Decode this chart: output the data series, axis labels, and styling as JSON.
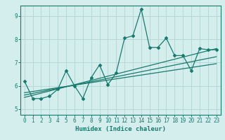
{
  "xlabel": "Humidex (Indice chaleur)",
  "ylabel": "",
  "bg_color": "#d4eded",
  "grid_color": "#b8d8d8",
  "line_color": "#1a7a6e",
  "xlim": [
    -0.5,
    23.5
  ],
  "ylim": [
    4.75,
    9.45
  ],
  "xticks": [
    0,
    1,
    2,
    3,
    4,
    5,
    6,
    7,
    8,
    9,
    10,
    11,
    12,
    13,
    14,
    15,
    16,
    17,
    18,
    19,
    20,
    21,
    22,
    23
  ],
  "yticks": [
    5,
    6,
    7,
    8,
    9
  ],
  "scatter_x": [
    0,
    1,
    2,
    3,
    4,
    5,
    6,
    7,
    8,
    9,
    10,
    11,
    12,
    13,
    14,
    15,
    16,
    17,
    18,
    19,
    20,
    21,
    22,
    23
  ],
  "scatter_y": [
    6.2,
    5.45,
    5.45,
    5.55,
    5.85,
    6.65,
    6.0,
    5.45,
    6.35,
    6.9,
    6.05,
    6.55,
    8.05,
    8.15,
    9.3,
    7.65,
    7.65,
    8.05,
    7.3,
    7.3,
    6.65,
    7.6,
    7.55,
    7.55
  ],
  "trend1_x": [
    0,
    23
  ],
  "trend1_y": [
    5.5,
    7.6
  ],
  "trend2_x": [
    0,
    23
  ],
  "trend2_y": [
    5.6,
    7.25
  ],
  "trend3_x": [
    0,
    23
  ],
  "trend3_y": [
    5.7,
    6.95
  ]
}
